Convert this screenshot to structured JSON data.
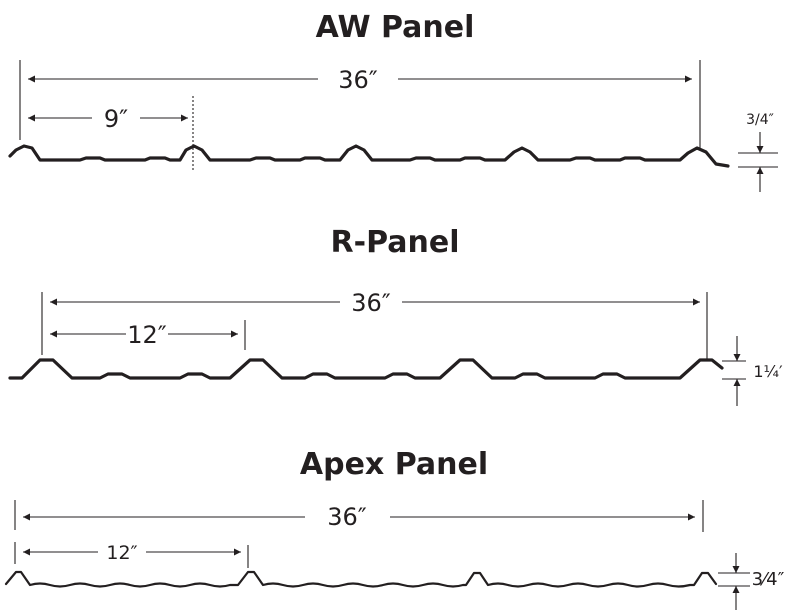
{
  "panels": [
    {
      "title": "AW Panel",
      "overall_width": "36″",
      "spacing": "9″",
      "rib_height": "3/4″"
    },
    {
      "title": "R-Panel",
      "overall_width": "36″",
      "spacing": "12″",
      "rib_height": "1¼′"
    },
    {
      "title": "Apex Panel",
      "overall_width": "36″",
      "spacing": "12″",
      "rib_height": "3⁄4″"
    }
  ]
}
